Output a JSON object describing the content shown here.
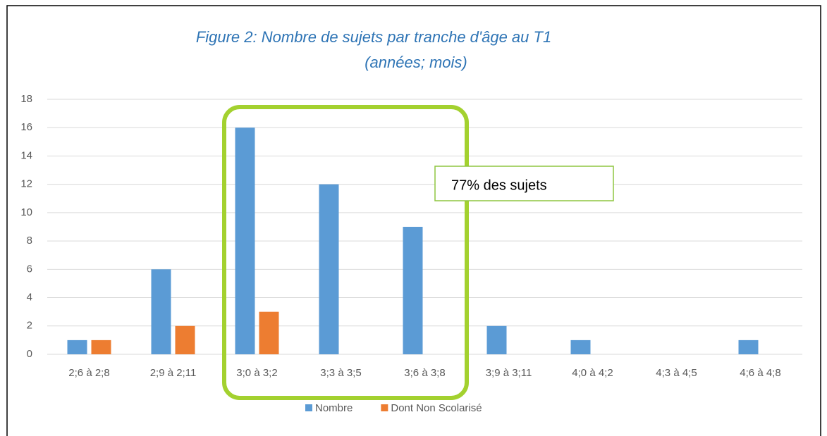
{
  "chart_data": {
    "type": "bar",
    "title": "Figure 2: Nombre de sujets par tranche d'âge au T1",
    "subtitle": "(années; mois)",
    "annotation": "77% des sujets",
    "categories": [
      "2;6 à 2;8",
      "2;9 à 2;11",
      "3;0 à 3;2",
      "3;3 à 3;5",
      "3;6 à 3;8",
      "3;9 à 3;11",
      "4;0 à 4;2",
      "4;3 à 4;5",
      "4;6 à 4;8"
    ],
    "series": [
      {
        "name": "Nombre",
        "color": "#5b9bd5",
        "values": [
          1,
          6,
          16,
          12,
          9,
          2,
          1,
          0,
          1
        ]
      },
      {
        "name": "Dont Non Scolarisé",
        "color": "#ed7d31",
        "values": [
          1,
          2,
          3,
          0,
          0,
          0,
          0,
          0,
          0
        ]
      }
    ],
    "ylim": [
      0,
      18
    ],
    "yticks": [
      0,
      2,
      4,
      6,
      8,
      10,
      12,
      14,
      16,
      18
    ],
    "grid": true,
    "legend": "bottom"
  }
}
